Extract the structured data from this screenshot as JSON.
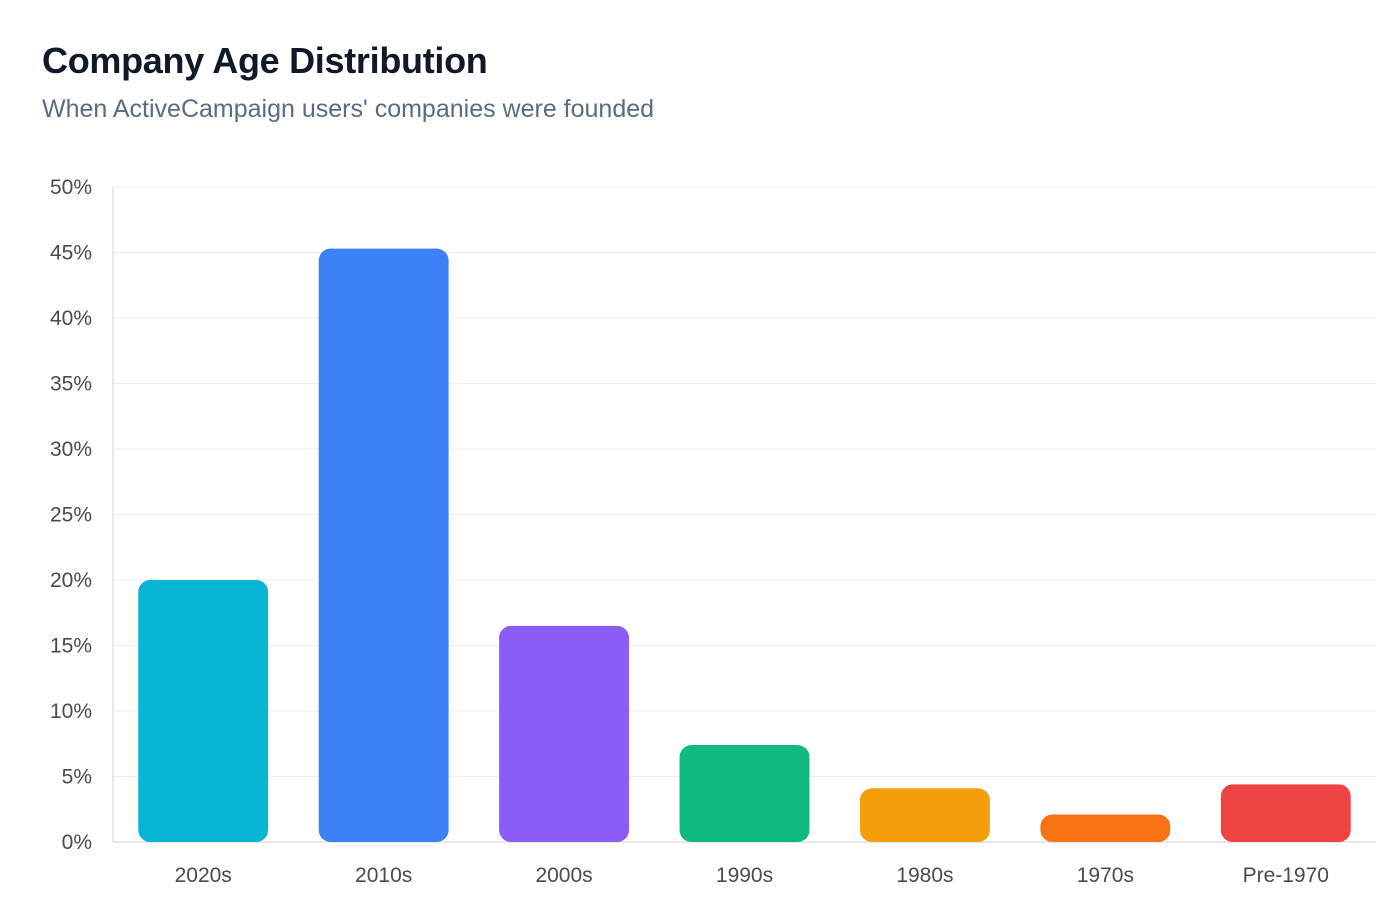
{
  "header": {
    "title": "Company Age Distribution",
    "subtitle": "When ActiveCampaign users' companies were founded"
  },
  "chart_data": {
    "type": "bar",
    "title": "Company Age Distribution",
    "subtitle": "When ActiveCampaign users' companies were founded",
    "xlabel": "",
    "ylabel": "",
    "categories": [
      "2020s",
      "2010s",
      "2000s",
      "1990s",
      "1980s",
      "1970s",
      "Pre-1970"
    ],
    "values": [
      20,
      45.3,
      16.5,
      7.4,
      4.1,
      2.1,
      4.4
    ],
    "colors": [
      "#06b6d4",
      "#3b82f6",
      "#8b5cf6",
      "#10b981",
      "#f59e0b",
      "#f97316",
      "#ef4444"
    ],
    "ylim": [
      0,
      50
    ],
    "yticks": [
      0,
      5,
      10,
      15,
      20,
      25,
      30,
      35,
      40,
      45,
      50
    ],
    "ytick_labels": [
      "0%",
      "5%",
      "10%",
      "15%",
      "20%",
      "25%",
      "30%",
      "35%",
      "40%",
      "45%",
      "50%"
    ],
    "grid": true,
    "legend": "none"
  }
}
